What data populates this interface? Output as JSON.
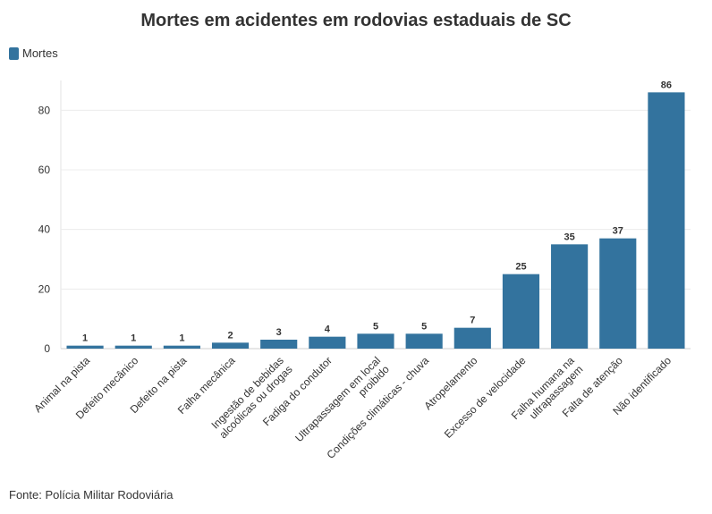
{
  "title": "Mortes em acidentes em rodovias estaduais de SC",
  "legend": {
    "label": "Mortes",
    "color": "#33739e"
  },
  "source": "Fonte: Polícia Militar Rodoviária",
  "chart_data": {
    "type": "bar",
    "title": "Mortes em acidentes em rodovias estaduais de SC",
    "xlabel": "",
    "ylabel": "",
    "ylim": [
      0,
      90
    ],
    "yticks": [
      0,
      20,
      40,
      60,
      80
    ],
    "grid": true,
    "legend_position": "top-left",
    "categories": [
      [
        "Animal na pista"
      ],
      [
        "Defeito mecânico"
      ],
      [
        "Defeito na pista"
      ],
      [
        "Falha mecânica"
      ],
      [
        "Ingestão de bebidas",
        "alcoólicas ou drogas"
      ],
      [
        "Fadiga do condutor"
      ],
      [
        "Ultrapassagem em local",
        "proibido"
      ],
      [
        "Condições climáticas - chuva"
      ],
      [
        "Atropelamento"
      ],
      [
        "Excesso de velocidade"
      ],
      [
        "Falha humana na",
        "ultrapassagem"
      ],
      [
        "Falta de atenção"
      ],
      [
        "Não identificado"
      ]
    ],
    "series": [
      {
        "name": "Mortes",
        "color": "#33739e",
        "values": [
          1,
          1,
          1,
          2,
          3,
          4,
          5,
          5,
          7,
          25,
          35,
          37,
          86
        ]
      }
    ]
  }
}
